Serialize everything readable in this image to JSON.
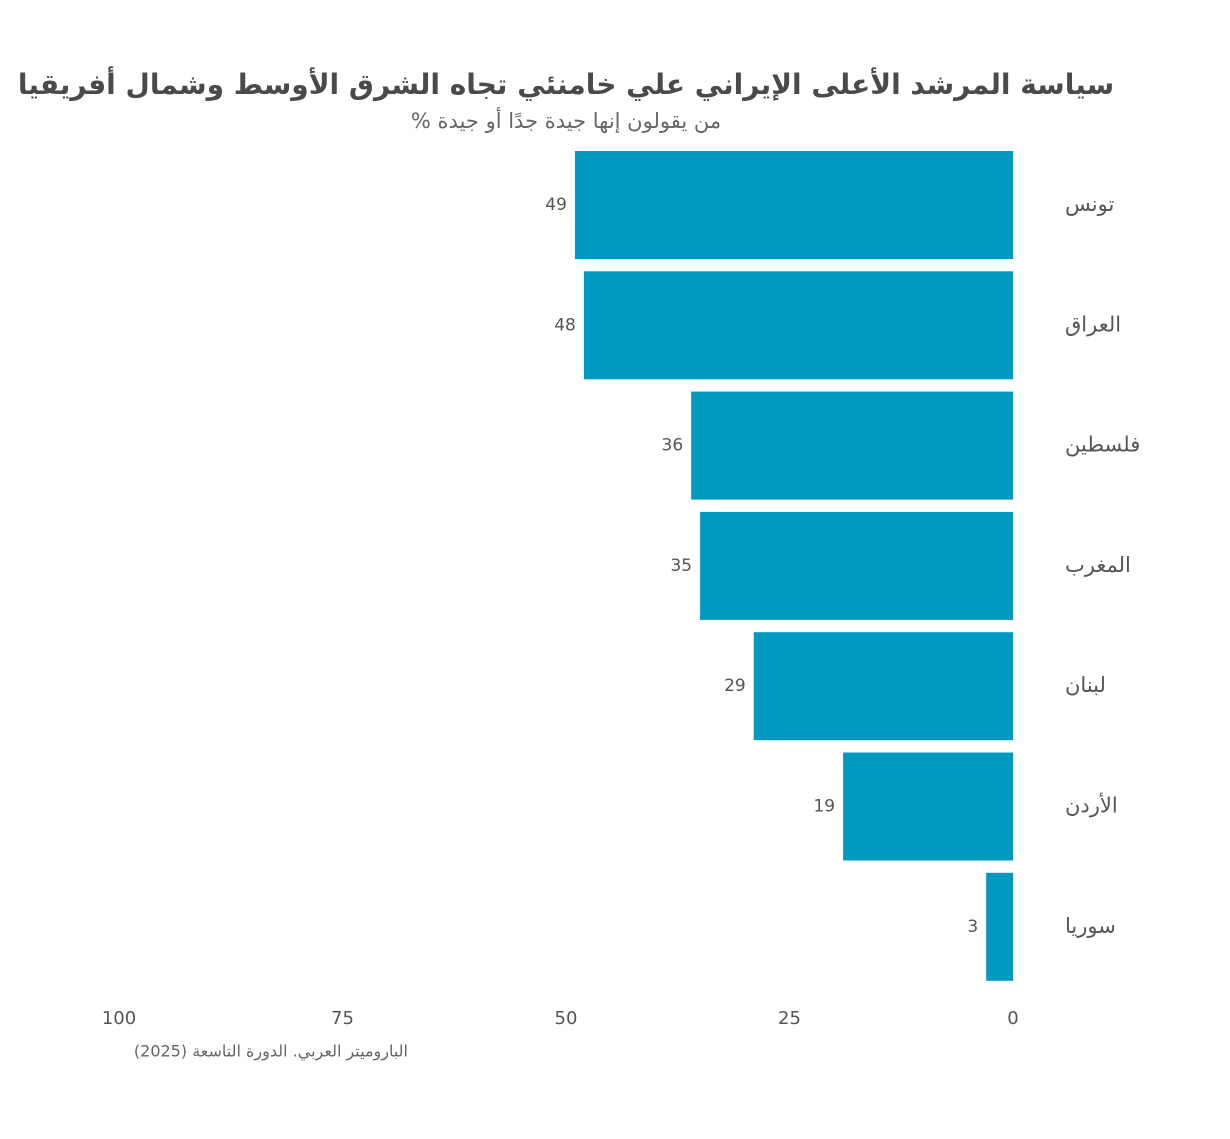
{
  "chart_data": {
    "type": "bar",
    "orientation": "horizontal",
    "title": "سياسة المرشد الأعلى الإيراني علي خامنئي تجاه الشرق الأوسط وشمال أفريقيا",
    "subtitle": "% من يقولون إنها جيدة جدًا أو جيدة",
    "categories": [
      "تونس",
      "العراق",
      "فلسطين",
      "المغرب",
      "لبنان",
      "الأردن",
      "سوريا"
    ],
    "values": [
      49,
      48,
      36,
      35,
      29,
      19,
      3
    ],
    "color": "#0099c2",
    "xlim": [
      0,
      100
    ],
    "xticks": [
      0,
      25,
      50,
      75,
      100
    ],
    "x_reversed": true,
    "grid": false,
    "source": "الباروميتر العربي. الدورة التاسعة (2025)"
  }
}
